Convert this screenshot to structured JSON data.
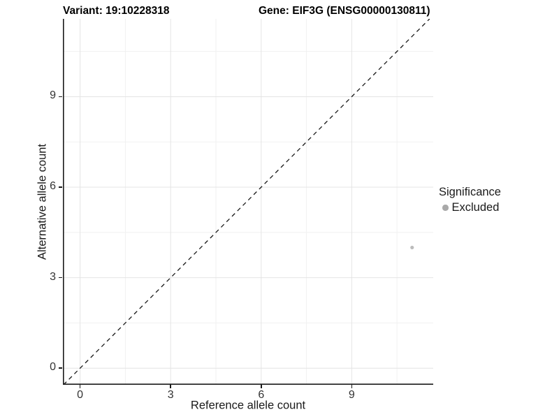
{
  "chart_data": {
    "type": "scatter",
    "title_left": "Variant: 19:10228318",
    "title_right": "Gene: EIF3G (ENSG00000130811)",
    "xlabel": "Reference allele count",
    "ylabel": "Alternative allele count",
    "xlim": [
      -0.57,
      11.7
    ],
    "ylim": [
      -0.55,
      11.58
    ],
    "x_major_ticks": [
      0,
      3,
      6,
      9
    ],
    "y_major_ticks": [
      0,
      3,
      6,
      9
    ],
    "x_minor_gridlines": [
      1.5,
      4.5,
      7.5,
      10.5
    ],
    "y_minor_gridlines": [
      1.5,
      4.5,
      7.5,
      10.5
    ],
    "grid": true,
    "identity_line": {
      "type": "abline",
      "slope": 1,
      "intercept": 0,
      "style": "dashed",
      "color": "#1a1a1a"
    },
    "points": [
      {
        "x": 11,
        "y": 4,
        "significance": "Excluded",
        "color": "#bcbcbc"
      }
    ],
    "legend": {
      "position": "right",
      "title": "Significance",
      "items": [
        {
          "label": "Excluded",
          "color": "#a9a9a9"
        }
      ]
    },
    "colors": {
      "background": "#ffffff",
      "grid_major": "#e4e4e4",
      "grid_minor": "#f1f1f1",
      "axis": "#1a1a1a",
      "tick_text": "#333333"
    }
  }
}
